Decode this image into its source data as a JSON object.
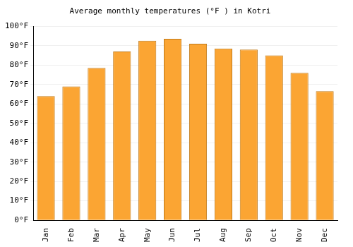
{
  "chart_data": {
    "type": "bar",
    "title": "Average monthly temperatures (°F ) in Kotri",
    "categories": [
      "Jan",
      "Feb",
      "Mar",
      "Apr",
      "May",
      "Jun",
      "Jul",
      "Aug",
      "Sep",
      "Oct",
      "Nov",
      "Dec"
    ],
    "values": [
      64,
      69,
      78.5,
      87,
      92.5,
      93.5,
      91,
      88.5,
      88,
      85,
      76,
      66.5
    ],
    "color": "#fba533",
    "ylim": [
      0,
      100
    ],
    "yticks": [
      {
        "value": 0,
        "label": "0°F"
      },
      {
        "value": 10,
        "label": "10°F"
      },
      {
        "value": 20,
        "label": "20°F"
      },
      {
        "value": 30,
        "label": "30°F"
      },
      {
        "value": 40,
        "label": "40°F"
      },
      {
        "value": 50,
        "label": "50°F"
      },
      {
        "value": 60,
        "label": "60°F"
      },
      {
        "value": 70,
        "label": "70°F"
      },
      {
        "value": 80,
        "label": "80°F"
      },
      {
        "value": 90,
        "label": "90°F"
      },
      {
        "value": 100,
        "label": "100°F"
      }
    ],
    "grid": true
  }
}
